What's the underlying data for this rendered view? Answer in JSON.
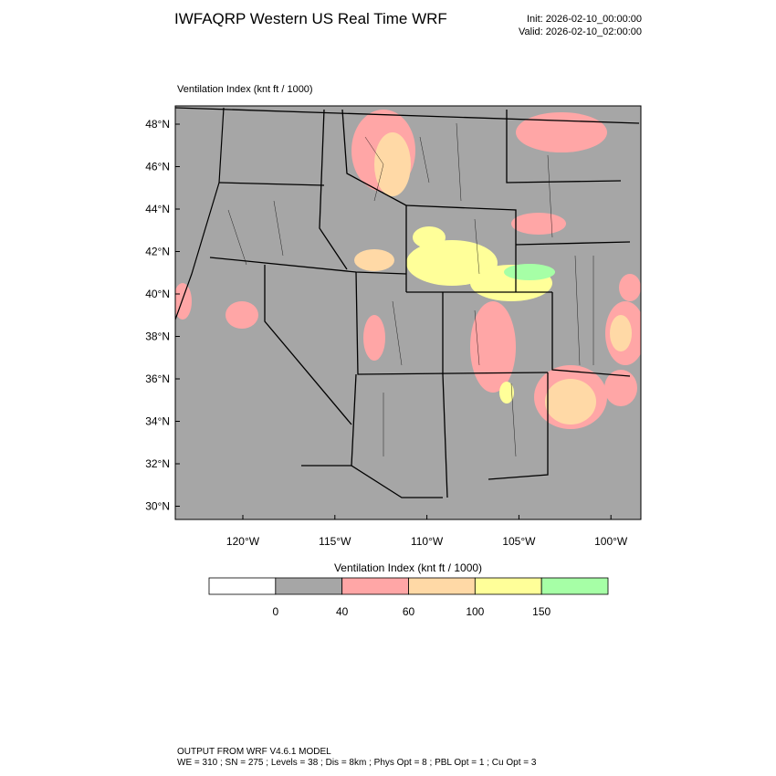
{
  "header": {
    "title": "IWFAQRP Western US Real Time WRF",
    "init": "Init: 2026-02-10_00:00:00",
    "valid": "Valid: 2026-02-10_02:00:00"
  },
  "map": {
    "field_label": "Ventilation Index   (knt ft / 1000)",
    "lat_labels": [
      "48°N",
      "46°N",
      "44°N",
      "42°N",
      "40°N",
      "38°N",
      "36°N",
      "34°N",
      "32°N",
      "30°N"
    ],
    "lon_labels": [
      "120°W",
      "115°W",
      "110°W",
      "105°W",
      "100°W"
    ]
  },
  "colorbar": {
    "title": "Ventilation Index   (knt ft / 1000)",
    "colors": [
      "#ffffff",
      "#a6a6a6",
      "#ffa6a6",
      "#ffd9a6",
      "#ffff99",
      "#a6ffa6"
    ],
    "labels": [
      0,
      40,
      60,
      100,
      150
    ]
  },
  "footer": {
    "line1": "OUTPUT FROM WRF V4.6.1 MODEL",
    "line2": "WE = 310 ; SN = 275 ; Levels = 38 ; Dis = 8km ; Phys Opt = 8 ; PBL Opt = 1 ; Cu Opt = 3"
  }
}
